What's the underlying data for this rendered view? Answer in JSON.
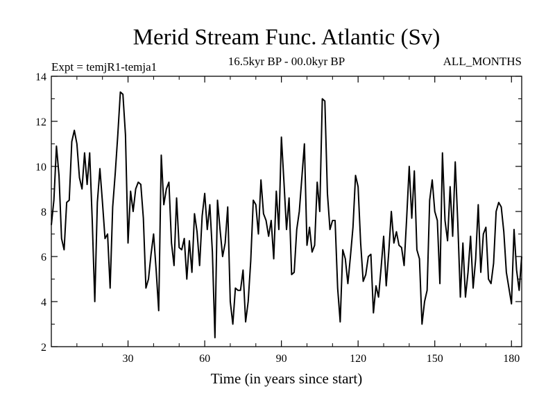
{
  "chart_data": {
    "type": "line",
    "title": "Merid Stream Func. Atlantic (Sv)",
    "subtitle_left": "Expt = temjR1-temja1",
    "subtitle_center": "16.5kyr BP - 00.0kyr BP",
    "subtitle_right": "ALL_MONTHS",
    "xlabel": "Time (in years since start)",
    "ylabel": "",
    "xlim": [
      0,
      184
    ],
    "ylim": [
      2,
      14
    ],
    "xticks": [
      30,
      60,
      90,
      120,
      150,
      180
    ],
    "yticks": [
      2,
      4,
      6,
      8,
      10,
      12,
      14
    ],
    "x_start": 0,
    "x_step": 1,
    "series": [
      {
        "name": "Merid Stream Func. Atlantic",
        "color": "#000000",
        "values": [
          7.4,
          8.5,
          10.9,
          9.6,
          6.8,
          6.3,
          8.4,
          8.5,
          11.1,
          11.6,
          11.0,
          9.5,
          9.0,
          10.6,
          9.2,
          10.6,
          7.6,
          4.0,
          8.4,
          9.9,
          8.4,
          6.8,
          7.0,
          4.6,
          8.2,
          9.7,
          11.4,
          13.3,
          13.2,
          11.4,
          6.6,
          8.9,
          8.0,
          9.0,
          9.3,
          9.2,
          7.7,
          4.6,
          5.0,
          6.1,
          7.0,
          5.4,
          3.6,
          10.5,
          8.3,
          9.0,
          9.3,
          6.6,
          5.6,
          8.6,
          6.4,
          6.3,
          6.8,
          5.0,
          6.7,
          5.3,
          7.9,
          7.1,
          5.6,
          7.8,
          8.8,
          7.2,
          8.3,
          6.2,
          2.4,
          8.5,
          7.2,
          6.0,
          6.6,
          8.2,
          4.0,
          3.0,
          4.6,
          4.5,
          4.5,
          5.4,
          3.1,
          4.0,
          5.8,
          8.5,
          8.3,
          7.0,
          9.4,
          7.9,
          7.6,
          6.9,
          7.6,
          5.9,
          8.9,
          7.2,
          11.3,
          9.3,
          7.2,
          8.6,
          5.2,
          5.3,
          7.2,
          8.0,
          9.5,
          11.0,
          6.5,
          7.3,
          6.2,
          6.5,
          9.3,
          8.0,
          13.0,
          12.9,
          8.8,
          7.2,
          7.6,
          7.6,
          4.6,
          3.1,
          6.3,
          5.9,
          4.8,
          6.0,
          7.3,
          9.6,
          9.1,
          6.6,
          4.9,
          5.2,
          6.0,
          6.1,
          3.5,
          4.7,
          4.2,
          5.5,
          6.9,
          4.7,
          6.2,
          8.0,
          6.6,
          7.1,
          6.5,
          6.4,
          5.6,
          7.7,
          10.0,
          7.7,
          9.8,
          6.3,
          5.9,
          3.0,
          4.0,
          4.5,
          8.5,
          9.4,
          8.0,
          7.6,
          4.8,
          10.6,
          7.6,
          6.7,
          9.1,
          6.9,
          10.2,
          7.5,
          4.2,
          6.6,
          4.2,
          5.3,
          6.9,
          4.6,
          5.9,
          8.3,
          5.3,
          7.0,
          7.3,
          5.0,
          4.8,
          5.7,
          8.0,
          8.4,
          8.2,
          7.1,
          5.3,
          4.6,
          3.9,
          7.2,
          5.4,
          4.5,
          6.0
        ]
      }
    ]
  }
}
